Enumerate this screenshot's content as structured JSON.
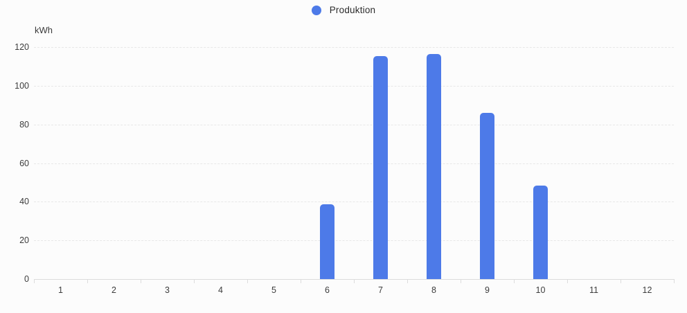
{
  "legend": {
    "label": "Produktion",
    "color": "#4d7ae8"
  },
  "chart_data": {
    "type": "bar",
    "title": "",
    "categories": [
      "1",
      "2",
      "3",
      "4",
      "5",
      "6",
      "7",
      "8",
      "9",
      "10",
      "11",
      "12"
    ],
    "series": [
      {
        "name": "Produktion",
        "color": "#4d7ae8",
        "values": [
          0,
          0,
          0,
          0,
          0,
          38.7,
          115.3,
          116.5,
          86,
          48.4,
          0,
          0
        ]
      }
    ],
    "xlabel": "",
    "ylabel": "kWh",
    "ylim": [
      0,
      120
    ],
    "yticks": [
      0,
      20,
      40,
      60,
      80,
      100,
      120
    ],
    "grid": "horizontal-dashed",
    "legend_position": "top-center"
  }
}
